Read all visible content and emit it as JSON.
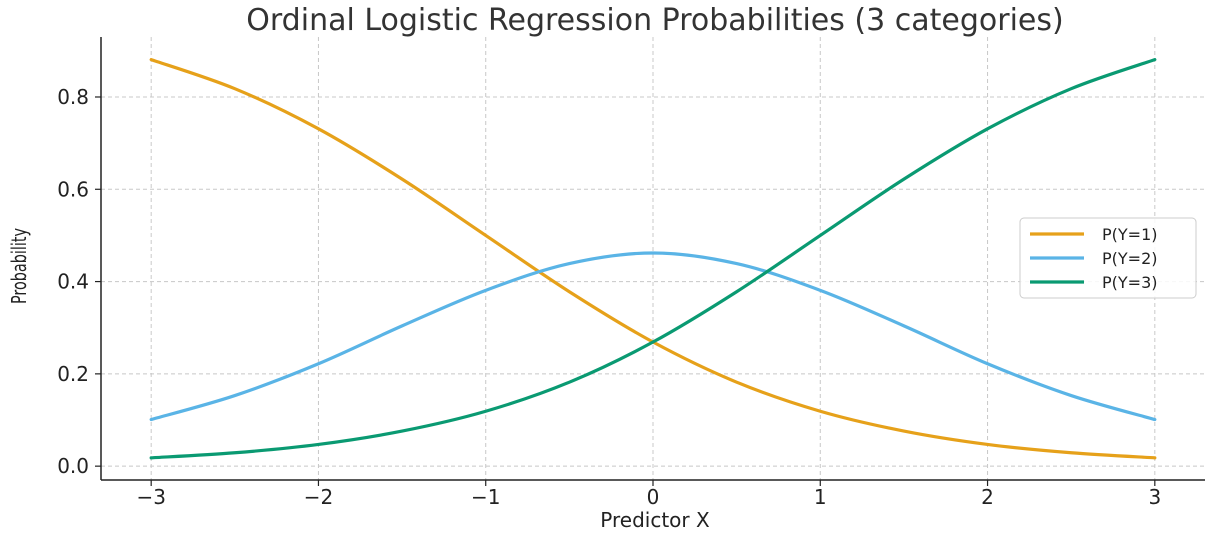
{
  "chart_data": {
    "type": "line",
    "title": "Ordinal Logistic Regression Probabilities (3 categories)",
    "xlabel": "Predictor X",
    "ylabel": "Probability",
    "xlim": [
      -3.3,
      3.3
    ],
    "ylim": [
      -0.03,
      0.93
    ],
    "xticks": [
      -3,
      -2,
      -1,
      0,
      1,
      2,
      3
    ],
    "xtick_labels": [
      "−3",
      "−2",
      "−1",
      "0",
      "1",
      "2",
      "3"
    ],
    "yticks": [
      0.0,
      0.2,
      0.4,
      0.6,
      0.8
    ],
    "ytick_labels": [
      "0.0",
      "0.2",
      "0.4",
      "0.6",
      "0.8"
    ],
    "grid": true,
    "legend_position": "right",
    "x": [
      -3.0,
      -2.5,
      -2.0,
      -1.5,
      -1.0,
      -0.5,
      0.0,
      0.5,
      1.0,
      1.5,
      2.0,
      2.5,
      3.0
    ],
    "series": [
      {
        "name": "P(Y=1)",
        "color": "#e6a11a",
        "values": [
          0.881,
          0.818,
          0.731,
          0.622,
          0.5,
          0.378,
          0.269,
          0.182,
          0.119,
          0.076,
          0.047,
          0.029,
          0.018
        ]
      },
      {
        "name": "P(Y=2)",
        "color": "#5ab4e6",
        "values": [
          0.101,
          0.153,
          0.222,
          0.304,
          0.381,
          0.439,
          0.462,
          0.439,
          0.381,
          0.304,
          0.222,
          0.153,
          0.101
        ]
      },
      {
        "name": "P(Y=3)",
        "color": "#0a9a72",
        "values": [
          0.018,
          0.029,
          0.047,
          0.076,
          0.119,
          0.182,
          0.269,
          0.378,
          0.5,
          0.622,
          0.731,
          0.818,
          0.881
        ]
      }
    ]
  }
}
